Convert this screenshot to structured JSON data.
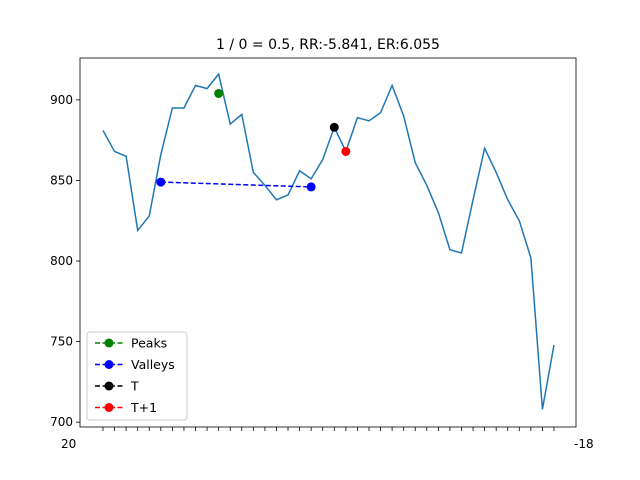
{
  "chart_data": {
    "type": "line",
    "title": "1 / 0 = 0.5, RR:-5.841, ER:6.055",
    "xlabel": "",
    "ylabel": "",
    "ylim": [
      697,
      926
    ],
    "yticks": [
      700,
      750,
      800,
      850,
      900
    ],
    "grid": false,
    "legend_position": "lower-left",
    "x_tick_labels_visible": [
      "20",
      "-18"
    ],
    "series": [
      {
        "color": "#1f77b4",
        "style": "solid",
        "values": [
          881,
          868,
          865,
          819,
          828,
          866,
          895,
          895,
          909,
          907,
          916,
          885,
          891,
          855,
          847,
          838,
          841,
          856,
          851,
          863,
          883,
          868,
          889,
          887,
          892,
          909,
          890,
          861,
          847,
          830,
          807,
          805,
          838,
          870,
          855,
          838,
          825,
          802,
          708,
          748
        ]
      }
    ],
    "markers": [
      {
        "name": "Peaks",
        "color": "#008000",
        "line_style": "dashed",
        "points": [
          {
            "x": 10,
            "y": 904
          }
        ]
      },
      {
        "name": "Valleys",
        "color": "#0000ff",
        "line_style": "dashed",
        "points": [
          {
            "x": 5,
            "y": 849
          },
          {
            "x": 18,
            "y": 846
          }
        ]
      },
      {
        "name": "T",
        "color": "#000000",
        "line_style": "dashed",
        "points": [
          {
            "x": 20,
            "y": 883
          }
        ]
      },
      {
        "name": "T+1",
        "color": "#ff0000",
        "line_style": "dashed",
        "points": [
          {
            "x": 21,
            "y": 868
          }
        ]
      }
    ]
  }
}
